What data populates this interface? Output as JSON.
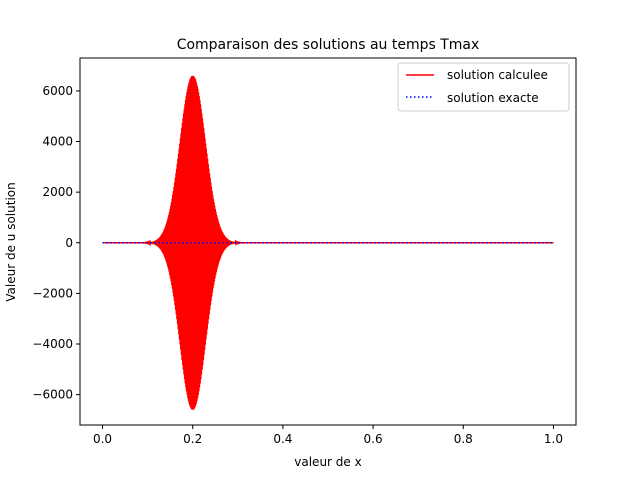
{
  "chart_data": {
    "type": "line",
    "title": "Comparaison des solutions au temps Tmax",
    "xlabel": "valeur de x",
    "ylabel": "Valeur de u solution",
    "xlim": [
      -0.05,
      1.05
    ],
    "ylim": [
      -7200,
      7300
    ],
    "x_ticks": [
      0.0,
      0.2,
      0.4,
      0.6,
      0.8,
      1.0
    ],
    "x_tick_labels": [
      "0.0",
      "0.2",
      "0.4",
      "0.6",
      "0.8",
      "1.0"
    ],
    "y_ticks": [
      -6000,
      -4000,
      -2000,
      0,
      2000,
      4000,
      6000
    ],
    "y_tick_labels": [
      "−6000",
      "−4000",
      "−2000",
      "0",
      "2000",
      "4000",
      "6000"
    ],
    "grid": false,
    "legend_position": "top-right",
    "series": [
      {
        "name": "solution calculee",
        "color": "#ff0000",
        "style": "solid",
        "shape": "oscillating wave packet",
        "center_x": 0.2,
        "peak_amplitude": 6600,
        "x_start": 0.0,
        "x_end": 1.0
      },
      {
        "name": "solution exacte",
        "color": "#0000ff",
        "style": "dotted",
        "shape": "flat",
        "value": 0,
        "x_start": 0.0,
        "x_end": 1.0
      }
    ]
  }
}
